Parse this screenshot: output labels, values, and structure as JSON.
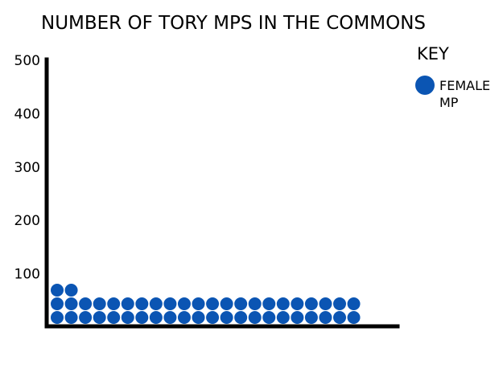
{
  "chart_data": {
    "type": "waffle",
    "title": "NUMBER OF TORY MPS IN THE COMMONS",
    "xlabel": "",
    "ylabel": "",
    "ylim": [
      0,
      500
    ],
    "yticks": [
      100,
      200,
      300,
      400,
      500
    ],
    "series": [
      {
        "name": "FEMALE MP",
        "values": [
          46
        ],
        "color": "#0b55b3"
      }
    ],
    "legend": {
      "title": "KEY",
      "entries": [
        "FEMALE MP"
      ],
      "placement": "top-right"
    },
    "grid": false
  }
}
